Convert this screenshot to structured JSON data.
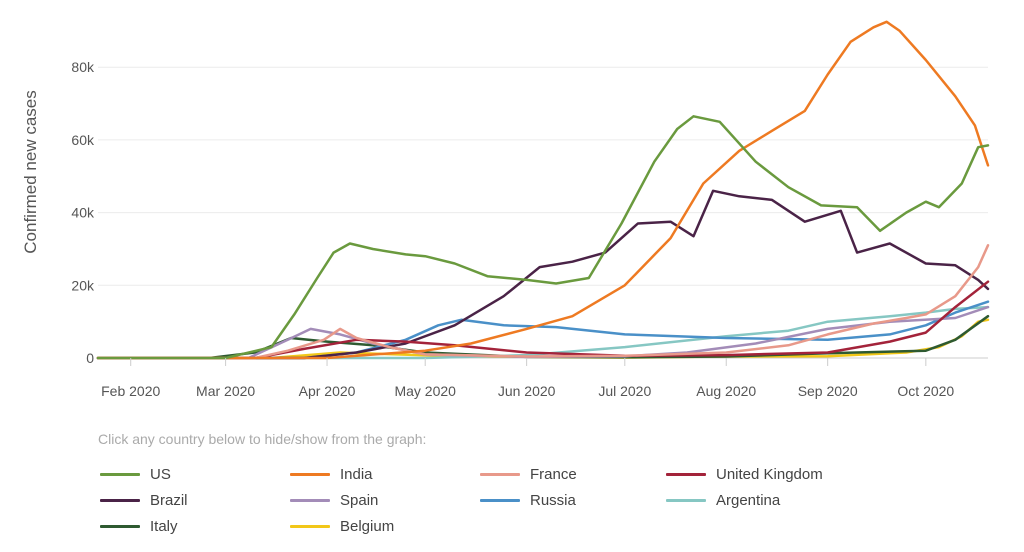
{
  "legend_hint": "Click any country below to hide/show from the graph:",
  "chart_data": {
    "type": "line",
    "ylabel": "Confirmed new cases",
    "ylim": [
      0,
      93000
    ],
    "yticks": [
      0,
      20000,
      40000,
      60000,
      80000
    ],
    "ytick_labels": [
      "0",
      "20k",
      "40k",
      "60k",
      "80k"
    ],
    "xrange": [
      "2020-01-22",
      "2020-10-20"
    ],
    "xticks": [
      "2020-02-01",
      "2020-03-01",
      "2020-04-01",
      "2020-05-01",
      "2020-06-01",
      "2020-07-01",
      "2020-08-01",
      "2020-09-01",
      "2020-10-01"
    ],
    "xtick_labels": [
      "Feb 2020",
      "Mar 2020",
      "Apr 2020",
      "May 2020",
      "Jun 2020",
      "Jul 2020",
      "Aug 2020",
      "Sep 2020",
      "Oct 2020"
    ],
    "grid": "horizontal",
    "legend_position": "bottom",
    "series": [
      {
        "name": "US",
        "color": "#6a9a3e",
        "points": [
          [
            "2020-01-22",
            0
          ],
          [
            "2020-03-01",
            0
          ],
          [
            "2020-03-15",
            3000
          ],
          [
            "2020-03-22",
            12000
          ],
          [
            "2020-03-29",
            22000
          ],
          [
            "2020-04-03",
            29000
          ],
          [
            "2020-04-08",
            31500
          ],
          [
            "2020-04-15",
            30000
          ],
          [
            "2020-04-25",
            28500
          ],
          [
            "2020-05-01",
            28000
          ],
          [
            "2020-05-10",
            26000
          ],
          [
            "2020-05-20",
            22500
          ],
          [
            "2020-06-01",
            21500
          ],
          [
            "2020-06-10",
            20500
          ],
          [
            "2020-06-20",
            22000
          ],
          [
            "2020-06-30",
            37000
          ],
          [
            "2020-07-10",
            54000
          ],
          [
            "2020-07-17",
            63000
          ],
          [
            "2020-07-22",
            66500
          ],
          [
            "2020-07-30",
            65000
          ],
          [
            "2020-08-10",
            54000
          ],
          [
            "2020-08-20",
            47000
          ],
          [
            "2020-08-30",
            42000
          ],
          [
            "2020-09-10",
            41500
          ],
          [
            "2020-09-17",
            35000
          ],
          [
            "2020-09-25",
            40000
          ],
          [
            "2020-10-01",
            43000
          ],
          [
            "2020-10-05",
            41500
          ],
          [
            "2020-10-12",
            48000
          ],
          [
            "2020-10-17",
            58000
          ],
          [
            "2020-10-20",
            58500
          ]
        ]
      },
      {
        "name": "India",
        "color": "#ee7a22",
        "points": [
          [
            "2020-01-22",
            0
          ],
          [
            "2020-04-01",
            0
          ],
          [
            "2020-05-01",
            2000
          ],
          [
            "2020-05-15",
            4000
          ],
          [
            "2020-06-01",
            8000
          ],
          [
            "2020-06-15",
            11500
          ],
          [
            "2020-07-01",
            20000
          ],
          [
            "2020-07-15",
            33000
          ],
          [
            "2020-07-25",
            48000
          ],
          [
            "2020-08-05",
            57000
          ],
          [
            "2020-08-15",
            62500
          ],
          [
            "2020-08-25",
            68000
          ],
          [
            "2020-09-01",
            78000
          ],
          [
            "2020-09-08",
            87000
          ],
          [
            "2020-09-15",
            91000
          ],
          [
            "2020-09-19",
            92500
          ],
          [
            "2020-09-23",
            90000
          ],
          [
            "2020-10-01",
            82000
          ],
          [
            "2020-10-10",
            72000
          ],
          [
            "2020-10-16",
            64000
          ],
          [
            "2020-10-20",
            53000
          ]
        ]
      },
      {
        "name": "France",
        "color": "#e8998a",
        "points": [
          [
            "2020-01-22",
            0
          ],
          [
            "2020-03-10",
            0
          ],
          [
            "2020-03-20",
            2000
          ],
          [
            "2020-03-31",
            5000
          ],
          [
            "2020-04-05",
            8000
          ],
          [
            "2020-04-10",
            5500
          ],
          [
            "2020-04-20",
            3000
          ],
          [
            "2020-05-01",
            1000
          ],
          [
            "2020-06-01",
            400
          ],
          [
            "2020-07-01",
            600
          ],
          [
            "2020-08-01",
            1500
          ],
          [
            "2020-08-20",
            3500
          ],
          [
            "2020-09-01",
            6500
          ],
          [
            "2020-09-15",
            9500
          ],
          [
            "2020-09-25",
            11000
          ],
          [
            "2020-10-01",
            12000
          ],
          [
            "2020-10-10",
            17000
          ],
          [
            "2020-10-17",
            25000
          ],
          [
            "2020-10-20",
            31000
          ]
        ]
      },
      {
        "name": "United Kingdom",
        "color": "#a3233a",
        "points": [
          [
            "2020-01-22",
            0
          ],
          [
            "2020-03-10",
            0
          ],
          [
            "2020-03-25",
            2500
          ],
          [
            "2020-04-10",
            5000
          ],
          [
            "2020-04-25",
            4500
          ],
          [
            "2020-05-10",
            3500
          ],
          [
            "2020-06-01",
            1500
          ],
          [
            "2020-07-01",
            600
          ],
          [
            "2020-08-01",
            800
          ],
          [
            "2020-09-01",
            1500
          ],
          [
            "2020-09-20",
            4500
          ],
          [
            "2020-10-01",
            7000
          ],
          [
            "2020-10-10",
            14000
          ],
          [
            "2020-10-20",
            21000
          ]
        ]
      },
      {
        "name": "Brazil",
        "color": "#4a2347",
        "points": [
          [
            "2020-01-22",
            0
          ],
          [
            "2020-03-25",
            0
          ],
          [
            "2020-04-10",
            1500
          ],
          [
            "2020-04-25",
            4000
          ],
          [
            "2020-05-10",
            9000
          ],
          [
            "2020-05-25",
            17000
          ],
          [
            "2020-06-05",
            25000
          ],
          [
            "2020-06-15",
            26500
          ],
          [
            "2020-06-25",
            29000
          ],
          [
            "2020-07-05",
            37000
          ],
          [
            "2020-07-15",
            37500
          ],
          [
            "2020-07-22",
            33500
          ],
          [
            "2020-07-28",
            46000
          ],
          [
            "2020-08-05",
            44500
          ],
          [
            "2020-08-15",
            43500
          ],
          [
            "2020-08-25",
            37500
          ],
          [
            "2020-09-05",
            40500
          ],
          [
            "2020-09-10",
            29000
          ],
          [
            "2020-09-20",
            31500
          ],
          [
            "2020-10-01",
            26000
          ],
          [
            "2020-10-10",
            25500
          ],
          [
            "2020-10-17",
            21500
          ],
          [
            "2020-10-20",
            19000
          ]
        ]
      },
      {
        "name": "Spain",
        "color": "#a38cb8",
        "points": [
          [
            "2020-01-22",
            0
          ],
          [
            "2020-03-08",
            0
          ],
          [
            "2020-03-20",
            5000
          ],
          [
            "2020-03-27",
            8000
          ],
          [
            "2020-04-05",
            6500
          ],
          [
            "2020-04-15",
            4000
          ],
          [
            "2020-05-01",
            1000
          ],
          [
            "2020-06-01",
            300
          ],
          [
            "2020-07-01",
            500
          ],
          [
            "2020-07-20",
            1500
          ],
          [
            "2020-08-10",
            4000
          ],
          [
            "2020-09-01",
            8000
          ],
          [
            "2020-09-20",
            10000
          ],
          [
            "2020-10-10",
            11000
          ],
          [
            "2020-10-20",
            14000
          ]
        ]
      },
      {
        "name": "Russia",
        "color": "#4a90c8",
        "points": [
          [
            "2020-01-22",
            0
          ],
          [
            "2020-03-25",
            0
          ],
          [
            "2020-04-10",
            1500
          ],
          [
            "2020-04-25",
            5000
          ],
          [
            "2020-05-05",
            9000
          ],
          [
            "2020-05-12",
            10500
          ],
          [
            "2020-05-25",
            9000
          ],
          [
            "2020-06-10",
            8500
          ],
          [
            "2020-07-01",
            6500
          ],
          [
            "2020-08-01",
            5500
          ],
          [
            "2020-09-01",
            5000
          ],
          [
            "2020-09-20",
            6500
          ],
          [
            "2020-10-01",
            9000
          ],
          [
            "2020-10-10",
            12500
          ],
          [
            "2020-10-20",
            15500
          ]
        ]
      },
      {
        "name": "Argentina",
        "color": "#86c7c3",
        "points": [
          [
            "2020-01-22",
            0
          ],
          [
            "2020-05-01",
            0
          ],
          [
            "2020-06-01",
            800
          ],
          [
            "2020-07-01",
            3000
          ],
          [
            "2020-08-01",
            6000
          ],
          [
            "2020-08-20",
            7500
          ],
          [
            "2020-09-01",
            10000
          ],
          [
            "2020-09-20",
            11500
          ],
          [
            "2020-10-01",
            12500
          ],
          [
            "2020-10-10",
            13500
          ],
          [
            "2020-10-20",
            14000
          ]
        ]
      },
      {
        "name": "Italy",
        "color": "#2e5a31",
        "points": [
          [
            "2020-01-22",
            0
          ],
          [
            "2020-02-25",
            0
          ],
          [
            "2020-03-10",
            1500
          ],
          [
            "2020-03-21",
            5500
          ],
          [
            "2020-04-01",
            4500
          ],
          [
            "2020-04-15",
            3500
          ],
          [
            "2020-05-01",
            1500
          ],
          [
            "2020-06-01",
            300
          ],
          [
            "2020-07-01",
            200
          ],
          [
            "2020-08-01",
            400
          ],
          [
            "2020-09-01",
            1300
          ],
          [
            "2020-10-01",
            2000
          ],
          [
            "2020-10-10",
            5000
          ],
          [
            "2020-10-20",
            11500
          ]
        ]
      },
      {
        "name": "Belgium",
        "color": "#f2c718",
        "points": [
          [
            "2020-01-22",
            0
          ],
          [
            "2020-03-15",
            0
          ],
          [
            "2020-04-05",
            1500
          ],
          [
            "2020-04-15",
            1200
          ],
          [
            "2020-05-10",
            500
          ],
          [
            "2020-07-01",
            100
          ],
          [
            "2020-08-01",
            400
          ],
          [
            "2020-09-01",
            500
          ],
          [
            "2020-09-25",
            1500
          ],
          [
            "2020-10-05",
            3000
          ],
          [
            "2020-10-12",
            6000
          ],
          [
            "2020-10-17",
            10000
          ],
          [
            "2020-10-20",
            10500
          ]
        ]
      }
    ]
  }
}
